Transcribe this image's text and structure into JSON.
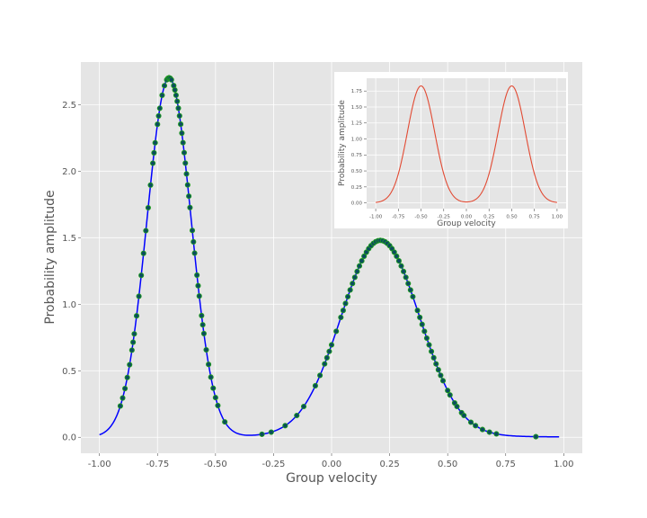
{
  "chart_data": [
    {
      "type": "line",
      "xlabel": "Group velocity",
      "ylabel": "Probability amplitude",
      "xlim": [
        -1.08,
        1.08
      ],
      "ylim": [
        -0.12,
        2.82
      ],
      "xticks": [
        "-1.00",
        "-0.75",
        "-0.50",
        "-0.25",
        "0.00",
        "0.25",
        "0.50",
        "0.75",
        "1.00"
      ],
      "yticks": [
        "0.0",
        "0.5",
        "1.0",
        "1.5",
        "2.0",
        "2.5"
      ],
      "grid": true,
      "style": "ggplot",
      "curve": {
        "color": "#0000ff",
        "x_range": [
          -1.0,
          0.98
        ],
        "components": [
          {
            "center": -0.7,
            "amplitude": 2.7,
            "sigma": 0.095
          },
          {
            "center": 0.21,
            "amplitude": 1.47,
            "sigma": 0.17
          },
          {
            "center": 0.21,
            "amplitude": 0.01,
            "sigma": 0.5
          }
        ]
      },
      "series": [
        {
          "type": "scatter",
          "marker_fill": "#0b4c5f",
          "marker_edge": "#1e9b1e",
          "x": [
            -0.91,
            -0.9,
            -0.89,
            -0.88,
            -0.87,
            -0.86,
            -0.855,
            -0.85,
            -0.84,
            -0.83,
            -0.82,
            -0.81,
            -0.8,
            -0.79,
            -0.78,
            -0.77,
            -0.765,
            -0.76,
            -0.75,
            -0.745,
            -0.74,
            -0.73,
            -0.72,
            -0.71,
            -0.705,
            -0.7,
            -0.695,
            -0.69,
            -0.68,
            -0.675,
            -0.67,
            -0.665,
            -0.66,
            -0.655,
            -0.65,
            -0.645,
            -0.64,
            -0.635,
            -0.63,
            -0.625,
            -0.62,
            -0.615,
            -0.61,
            -0.6,
            -0.595,
            -0.59,
            -0.58,
            -0.575,
            -0.57,
            -0.56,
            -0.555,
            -0.55,
            -0.54,
            -0.53,
            -0.52,
            -0.51,
            -0.5,
            -0.49,
            -0.46,
            -0.3,
            -0.26,
            -0.2,
            -0.15,
            -0.12,
            -0.07,
            -0.05,
            -0.03,
            -0.02,
            -0.01,
            0.0,
            0.02,
            0.04,
            0.05,
            0.06,
            0.07,
            0.08,
            0.09,
            0.1,
            0.11,
            0.12,
            0.13,
            0.14,
            0.15,
            0.16,
            0.17,
            0.18,
            0.19,
            0.2,
            0.21,
            0.22,
            0.23,
            0.24,
            0.25,
            0.26,
            0.27,
            0.28,
            0.29,
            0.3,
            0.31,
            0.32,
            0.33,
            0.34,
            0.35,
            0.37,
            0.38,
            0.39,
            0.4,
            0.41,
            0.42,
            0.43,
            0.44,
            0.45,
            0.46,
            0.47,
            0.48,
            0.5,
            0.51,
            0.53,
            0.54,
            0.56,
            0.57,
            0.6,
            0.62,
            0.65,
            0.68,
            0.71,
            0.88
          ]
        }
      ]
    },
    {
      "type": "line",
      "xlabel": "Group velocity",
      "ylabel": "Probability amplitude",
      "xlim": [
        -1.1,
        1.1
      ],
      "ylim": [
        -0.09,
        1.95
      ],
      "xticks": [
        "-1.00",
        "-0.75",
        "-0.50",
        "-0.25",
        "0.00",
        "0.25",
        "0.50",
        "0.75",
        "1.00"
      ],
      "yticks": [
        "0.00",
        "0.25",
        "0.50",
        "0.75",
        "1.00",
        "1.25",
        "1.50",
        "1.75"
      ],
      "grid": true,
      "curve": {
        "color": "#e24a33",
        "x_range": [
          -1.0,
          1.0
        ],
        "components": [
          {
            "center": -0.5,
            "amplitude": 1.83,
            "sigma": 0.15
          },
          {
            "center": 0.5,
            "amplitude": 1.83,
            "sigma": 0.15
          }
        ]
      }
    }
  ]
}
